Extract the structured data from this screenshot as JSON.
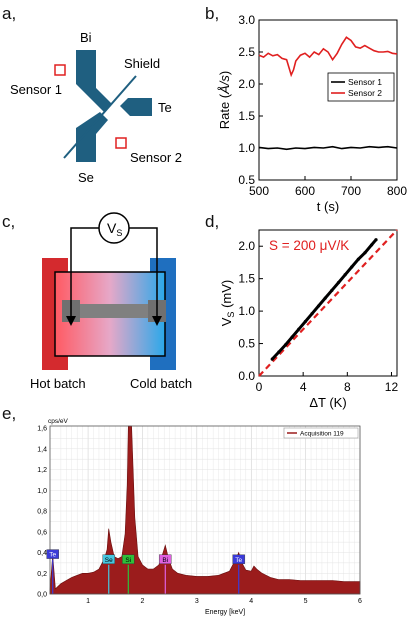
{
  "panels": {
    "a": {
      "label": "a,",
      "bi": "Bi",
      "te": "Te",
      "se": "Se",
      "shield": "Shield",
      "sensor1": "Sensor 1",
      "sensor2": "Sensor 2",
      "colors": {
        "target": "#1f5f80",
        "sensor": "#e02020"
      }
    },
    "b": {
      "label": "b,"
    },
    "c": {
      "label": "c,",
      "voltmeter_main": "V",
      "voltmeter_sub": "S",
      "hot": "Hot batch",
      "cold": "Cold batch",
      "colors": {
        "hot": "#d42a2e",
        "cold": "#1f6fbf",
        "bar": "#808080"
      }
    },
    "d": {
      "label": "d,"
    },
    "e": {
      "label": "e,"
    }
  },
  "chart_data": [
    {
      "panel": "b",
      "type": "line",
      "xlabel": "t (s)",
      "ylabel_main": "Rate (",
      "ylabel_unit": "Å/s",
      "ylabel_end": ")",
      "xlim": [
        500,
        800
      ],
      "ylim": [
        0.5,
        3.0
      ],
      "xticks": [
        500,
        600,
        700,
        800
      ],
      "yticks": [
        0.5,
        1.0,
        1.5,
        2.0,
        2.5,
        3.0
      ],
      "ytick_labels": [
        "0.5",
        "1.0",
        "1.5",
        "2.0",
        "2.5",
        "3.0"
      ],
      "legend_position": "right",
      "series": [
        {
          "name": "Sensor 1",
          "color": "#000000",
          "x": [
            500,
            520,
            540,
            560,
            580,
            600,
            620,
            640,
            660,
            680,
            700,
            720,
            740,
            760,
            780,
            800
          ],
          "y": [
            1.01,
            0.99,
            1.0,
            0.98,
            1.0,
            0.99,
            1.01,
            1.0,
            1.02,
            0.99,
            1.01,
            1.0,
            1.02,
            1.01,
            1.02,
            1.0
          ]
        },
        {
          "name": "Sensor 2",
          "color": "#e02020",
          "x": [
            500,
            510,
            520,
            530,
            540,
            550,
            560,
            570,
            575,
            580,
            590,
            600,
            610,
            620,
            630,
            640,
            650,
            660,
            670,
            680,
            690,
            700,
            710,
            720,
            730,
            740,
            750,
            760,
            770,
            780,
            790,
            800
          ],
          "y": [
            2.45,
            2.42,
            2.48,
            2.44,
            2.46,
            2.4,
            2.38,
            2.14,
            2.22,
            2.36,
            2.45,
            2.48,
            2.42,
            2.5,
            2.46,
            2.55,
            2.5,
            2.38,
            2.48,
            2.62,
            2.73,
            2.68,
            2.58,
            2.56,
            2.6,
            2.56,
            2.52,
            2.5,
            2.5,
            2.51,
            2.48,
            2.47
          ]
        }
      ]
    },
    {
      "panel": "d",
      "type": "scatter",
      "xlabel": "ΔT (K)",
      "ylabel_main": "V",
      "ylabel_sub": "S",
      "ylabel_unit": " (mV)",
      "xlim": [
        0,
        12.5
      ],
      "ylim": [
        0,
        2.25
      ],
      "xticks": [
        0,
        4,
        8,
        12
      ],
      "yticks": [
        0,
        0.5,
        1.0,
        1.5,
        2.0
      ],
      "ytick_labels": [
        "0.0",
        "0.5",
        "1.0",
        "1.5",
        "2.0"
      ],
      "annotation": "S = 200 μV/K",
      "fit": {
        "color": "#e02020",
        "slope": 0.2,
        "x": [
          0,
          12.5
        ]
      },
      "series": [
        {
          "color": "#000000",
          "x": [
            1.2,
            1.8,
            2.4,
            3.0,
            3.6,
            4.2,
            4.8,
            5.4,
            6.0,
            6.6,
            7.2,
            7.8,
            8.4,
            9.0,
            9.6,
            10.2,
            10.6
          ],
          "y": [
            0.26,
            0.37,
            0.48,
            0.6,
            0.72,
            0.84,
            0.96,
            1.08,
            1.2,
            1.32,
            1.44,
            1.56,
            1.68,
            1.8,
            1.9,
            2.02,
            2.1
          ]
        }
      ]
    },
    {
      "panel": "e",
      "type": "area",
      "yunit": "cps/eV",
      "xlabel": "Energy [keV]",
      "xlim": [
        0.3,
        6
      ],
      "ylim": [
        0,
        1.62
      ],
      "xticks": [
        1,
        2,
        3,
        4,
        5,
        6
      ],
      "yticks": [
        0,
        0.2,
        0.4,
        0.6,
        0.8,
        1.0,
        1.2,
        1.4,
        1.6
      ],
      "ytick_labels": [
        "0,0",
        "0,2",
        "0,4",
        "0,6",
        "0,8",
        "1,0",
        "1,2",
        "1,4",
        "1,6"
      ],
      "legend": "Acquisition 119",
      "colors": {
        "fill": "#9b1c1c",
        "stroke": "#6a0d0d"
      },
      "peaks": [
        {
          "label": "Te",
          "x": 0.35,
          "y": 0.38,
          "color": "#3a3ad8",
          "text_color": "#ffffff"
        },
        {
          "label": "Se",
          "x": 1.38,
          "y": 0.33,
          "color": "#47c7e0",
          "text_color": "#000000"
        },
        {
          "label": "Si",
          "x": 1.74,
          "y": 0.33,
          "color": "#2fbf3a",
          "text_color": "#000000"
        },
        {
          "label": "Bi",
          "x": 2.42,
          "y": 0.33,
          "color": "#e060e0",
          "text_color": "#000000"
        },
        {
          "label": "Te",
          "x": 3.77,
          "y": 0.33,
          "color": "#3a3ad8",
          "text_color": "#ffffff"
        }
      ],
      "spectrum": {
        "x": [
          0.3,
          0.35,
          0.4,
          0.5,
          0.6,
          0.7,
          0.8,
          0.9,
          1.0,
          1.1,
          1.2,
          1.3,
          1.35,
          1.38,
          1.42,
          1.48,
          1.55,
          1.62,
          1.68,
          1.72,
          1.74,
          1.8,
          1.86,
          1.92,
          2.0,
          2.1,
          2.2,
          2.3,
          2.38,
          2.42,
          2.48,
          2.55,
          2.65,
          2.8,
          3.0,
          3.2,
          3.4,
          3.6,
          3.72,
          3.77,
          3.83,
          3.9,
          4.0,
          4.05,
          4.1,
          4.2,
          4.35,
          4.5,
          4.7,
          4.9,
          5.1,
          5.3,
          5.5,
          5.7,
          5.9,
          6.0
        ],
        "y": [
          0.04,
          0.38,
          0.05,
          0.1,
          0.13,
          0.16,
          0.18,
          0.2,
          0.2,
          0.21,
          0.24,
          0.34,
          0.43,
          0.63,
          0.5,
          0.36,
          0.34,
          0.36,
          0.58,
          1.05,
          1.62,
          1.62,
          0.74,
          0.36,
          0.28,
          0.24,
          0.24,
          0.28,
          0.4,
          0.47,
          0.34,
          0.24,
          0.2,
          0.18,
          0.17,
          0.17,
          0.18,
          0.22,
          0.34,
          0.4,
          0.3,
          0.23,
          0.22,
          0.27,
          0.24,
          0.2,
          0.16,
          0.14,
          0.14,
          0.13,
          0.13,
          0.13,
          0.13,
          0.12,
          0.12,
          0.12
        ]
      }
    }
  ]
}
